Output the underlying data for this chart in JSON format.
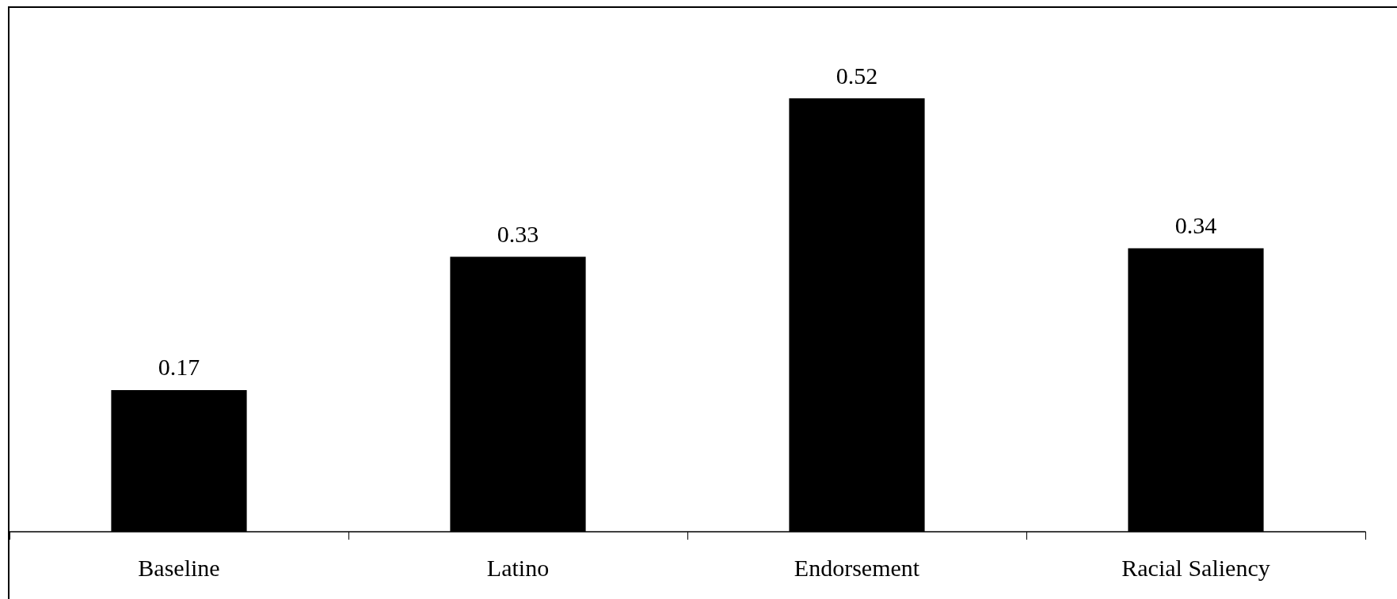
{
  "chart_data": {
    "type": "bar",
    "categories": [
      "Baseline",
      "Latino",
      "Endorsement",
      "Racial Saliency"
    ],
    "values": [
      0.17,
      0.33,
      0.52,
      0.34
    ],
    "color": "#000000",
    "data_labels": true
  }
}
